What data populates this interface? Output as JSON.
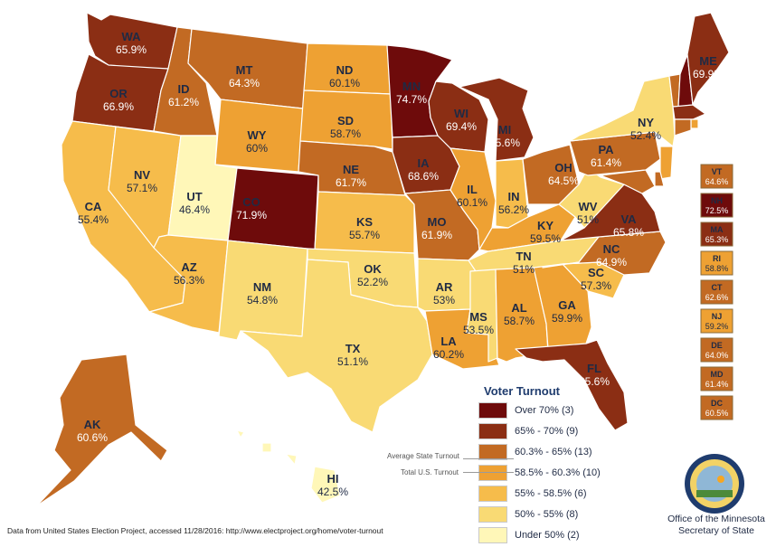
{
  "colors": {
    "over70": "#6e0b0b",
    "c65_70": "#8b2e14",
    "c603_65": "#c26a23",
    "c585_603": "#eea133",
    "c55_585": "#f6bc4b",
    "c50_55": "#f9da74",
    "under50": "#fff7b8"
  },
  "states": [
    {
      "abbr": "WA",
      "pct": "65.9%",
      "cls": "c65_70"
    },
    {
      "abbr": "OR",
      "pct": "66.9%",
      "cls": "c65_70"
    },
    {
      "abbr": "CA",
      "pct": "55.4%",
      "cls": "c55_585"
    },
    {
      "abbr": "NV",
      "pct": "57.1%",
      "cls": "c55_585"
    },
    {
      "abbr": "ID",
      "pct": "61.2%",
      "cls": "c603_65"
    },
    {
      "abbr": "MT",
      "pct": "64.3%",
      "cls": "c603_65"
    },
    {
      "abbr": "WY",
      "pct": "60%",
      "cls": "c585_603"
    },
    {
      "abbr": "UT",
      "pct": "46.4%",
      "cls": "under50"
    },
    {
      "abbr": "AZ",
      "pct": "56.3%",
      "cls": "c55_585"
    },
    {
      "abbr": "CO",
      "pct": "71.9%",
      "cls": "over70"
    },
    {
      "abbr": "NM",
      "pct": "54.8%",
      "cls": "c50_55"
    },
    {
      "abbr": "ND",
      "pct": "60.1%",
      "cls": "c585_603"
    },
    {
      "abbr": "SD",
      "pct": "58.7%",
      "cls": "c585_603"
    },
    {
      "abbr": "NE",
      "pct": "61.7%",
      "cls": "c603_65"
    },
    {
      "abbr": "KS",
      "pct": "55.7%",
      "cls": "c55_585"
    },
    {
      "abbr": "OK",
      "pct": "52.2%",
      "cls": "c50_55"
    },
    {
      "abbr": "TX",
      "pct": "51.1%",
      "cls": "c50_55"
    },
    {
      "abbr": "MN",
      "pct": "74.7%",
      "cls": "over70"
    },
    {
      "abbr": "IA",
      "pct": "68.6%",
      "cls": "c65_70"
    },
    {
      "abbr": "MO",
      "pct": "61.9%",
      "cls": "c603_65"
    },
    {
      "abbr": "AR",
      "pct": "53%",
      "cls": "c50_55"
    },
    {
      "abbr": "LA",
      "pct": "60.2%",
      "cls": "c585_603"
    },
    {
      "abbr": "WI",
      "pct": "69.4%",
      "cls": "c65_70"
    },
    {
      "abbr": "IL",
      "pct": "60.1%",
      "cls": "c585_603"
    },
    {
      "abbr": "MI",
      "pct": "65.6%",
      "cls": "c65_70"
    },
    {
      "abbr": "IN",
      "pct": "56.2%",
      "cls": "c55_585"
    },
    {
      "abbr": "OH",
      "pct": "64.5%",
      "cls": "c603_65"
    },
    {
      "abbr": "KY",
      "pct": "59.5%",
      "cls": "c585_603"
    },
    {
      "abbr": "TN",
      "pct": "51%",
      "cls": "c50_55"
    },
    {
      "abbr": "MS",
      "pct": "53.5%",
      "cls": "c50_55"
    },
    {
      "abbr": "AL",
      "pct": "58.7%",
      "cls": "c585_603"
    },
    {
      "abbr": "GA",
      "pct": "59.9%",
      "cls": "c585_603"
    },
    {
      "abbr": "FL",
      "pct": "65.6%",
      "cls": "c65_70"
    },
    {
      "abbr": "SC",
      "pct": "57.3%",
      "cls": "c55_585"
    },
    {
      "abbr": "NC",
      "pct": "64.9%",
      "cls": "c603_65"
    },
    {
      "abbr": "VA",
      "pct": "65.8%",
      "cls": "c65_70"
    },
    {
      "abbr": "WV",
      "pct": "51%",
      "cls": "c50_55"
    },
    {
      "abbr": "PA",
      "pct": "61.4%",
      "cls": "c603_65"
    },
    {
      "abbr": "NY",
      "pct": "52.4%",
      "cls": "c50_55"
    },
    {
      "abbr": "ME",
      "pct": "69.9%",
      "cls": "c65_70"
    },
    {
      "abbr": "AK",
      "pct": "60.6%",
      "cls": "c603_65"
    },
    {
      "abbr": "HI",
      "pct": "42.5%",
      "cls": "under50"
    }
  ],
  "small_states": [
    {
      "abbr": "VT",
      "pct": "64.6%",
      "cls": "c603_65"
    },
    {
      "abbr": "NH",
      "pct": "72.5%",
      "cls": "over70"
    },
    {
      "abbr": "MA",
      "pct": "65.3%",
      "cls": "c65_70"
    },
    {
      "abbr": "RI",
      "pct": "58.8%",
      "cls": "c585_603"
    },
    {
      "abbr": "CT",
      "pct": "62.6%",
      "cls": "c603_65"
    },
    {
      "abbr": "NJ",
      "pct": "59.2%",
      "cls": "c585_603"
    },
    {
      "abbr": "DE",
      "pct": "64.0%",
      "cls": "c603_65"
    },
    {
      "abbr": "MD",
      "pct": "61.4%",
      "cls": "c603_65"
    },
    {
      "abbr": "DC",
      "pct": "60.5%",
      "cls": "c603_65"
    }
  ],
  "legend": {
    "title": "Voter Turnout",
    "items": [
      {
        "label": "Over 70% (3)",
        "cls": "over70"
      },
      {
        "label": "65% - 70% (9)",
        "cls": "c65_70"
      },
      {
        "label": "60.3% - 65% (13)",
        "cls": "c603_65"
      },
      {
        "label": "58.5% - 60.3% (10)",
        "cls": "c585_603"
      },
      {
        "label": "55% - 58.5% (6)",
        "cls": "c55_585"
      },
      {
        "label": "50% - 55% (8)",
        "cls": "c50_55"
      },
      {
        "label": "Under 50% (2)",
        "cls": "under50"
      }
    ],
    "avg_label": "Average State Turnout",
    "total_label": "Total U.S. Turnout"
  },
  "source": "Data from United States Election Project, accessed 11/28/2016: http://www.electproject.org/home/voter-turnout",
  "office": {
    "line1": "Office of the Minnesota",
    "line2": "Secretary of State"
  }
}
